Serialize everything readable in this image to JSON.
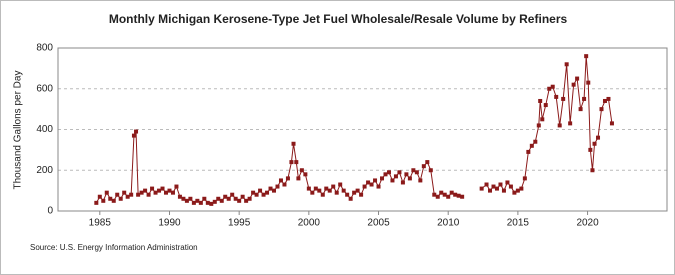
{
  "chart_data": {
    "type": "line",
    "title": "Monthly Michigan Kerosene-Type Jet Fuel Wholesale/Resale Volume by Refiners",
    "y_label": "Thousand Gallons per Day",
    "source": "Source: U.S. Energy Information Administration",
    "x": [
      1984.75,
      1985,
      1985.25,
      1985.5,
      1985.75,
      1986,
      1986.25,
      1986.5,
      1986.75,
      1987,
      1987.25,
      1987.45,
      1987.6,
      1987.75,
      1988,
      1988.25,
      1988.5,
      1988.75,
      1989,
      1989.25,
      1989.5,
      1989.75,
      1990,
      1990.25,
      1990.5,
      1990.75,
      1991,
      1991.25,
      1991.5,
      1991.75,
      1992,
      1992.25,
      1992.5,
      1992.75,
      1993,
      1993.25,
      1993.5,
      1993.75,
      1994,
      1994.25,
      1994.5,
      1994.75,
      1995,
      1995.25,
      1995.5,
      1995.75,
      1996,
      1996.25,
      1996.5,
      1996.75,
      1997,
      1997.25,
      1997.5,
      1997.75,
      1998,
      1998.25,
      1998.5,
      1998.75,
      1998.9,
      1999.1,
      1999.25,
      1999.5,
      1999.75,
      2000,
      2000.25,
      2000.5,
      2000.75,
      2001,
      2001.25,
      2001.5,
      2001.75,
      2002,
      2002.25,
      2002.5,
      2002.75,
      2003,
      2003.25,
      2003.5,
      2003.75,
      2004,
      2004.25,
      2004.5,
      2004.75,
      2005,
      2005.25,
      2005.5,
      2005.75,
      2006,
      2006.25,
      2006.5,
      2006.75,
      2007,
      2007.25,
      2007.5,
      2007.75,
      2008,
      2008.25,
      2008.5,
      2008.75,
      2009,
      2009.25,
      2009.5,
      2009.75,
      2010,
      2010.25,
      2010.5,
      2010.75,
      2011,
      2011.7,
      2012.4,
      2012.75,
      2013,
      2013.25,
      2013.5,
      2013.75,
      2014,
      2014.25,
      2014.5,
      2014.75,
      2015,
      2015.25,
      2015.5,
      2015.75,
      2016,
      2016.25,
      2016.5,
      2016.6,
      2016.75,
      2017,
      2017.25,
      2017.5,
      2017.75,
      2018,
      2018.25,
      2018.5,
      2018.75,
      2019,
      2019.25,
      2019.5,
      2019.75,
      2019.9,
      2020.05,
      2020.2,
      2020.35,
      2020.5,
      2020.75,
      2021,
      2021.25,
      2021.5,
      2021.75
    ],
    "series": [
      {
        "color": "#8b1a1a",
        "values": [
          40,
          70,
          50,
          90,
          60,
          50,
          80,
          60,
          90,
          70,
          80,
          370,
          390,
          80,
          90,
          100,
          80,
          110,
          90,
          100,
          110,
          90,
          100,
          90,
          120,
          70,
          60,
          50,
          60,
          40,
          50,
          40,
          60,
          40,
          35,
          45,
          60,
          50,
          70,
          60,
          80,
          60,
          50,
          70,
          50,
          60,
          90,
          80,
          100,
          80,
          90,
          110,
          100,
          120,
          150,
          130,
          160,
          240,
          330,
          240,
          160,
          200,
          180,
          110,
          90,
          110,
          100,
          80,
          110,
          100,
          120,
          90,
          130,
          100,
          80,
          60,
          90,
          100,
          80,
          120,
          140,
          130,
          150,
          120,
          160,
          180,
          190,
          150,
          170,
          190,
          140,
          180,
          160,
          200,
          190,
          150,
          220,
          240,
          200,
          80,
          70,
          90,
          80,
          70,
          90,
          80,
          75,
          70,
          null,
          110,
          130,
          100,
          120,
          110,
          130,
          100,
          140,
          120,
          90,
          100,
          110,
          160,
          290,
          320,
          340,
          420,
          540,
          450,
          520,
          600,
          610,
          560,
          420,
          550,
          720,
          430,
          620,
          650,
          500,
          550,
          760,
          630,
          300,
          200,
          330,
          360,
          500,
          540,
          550,
          430
        ]
      }
    ],
    "xlim": [
      1982,
      2025.7
    ],
    "ylim": [
      0,
      800
    ],
    "xticks": [
      1985,
      1990,
      1995,
      2000,
      2005,
      2010,
      2015,
      2020
    ],
    "yticks": [
      0,
      200,
      400,
      600,
      800
    ],
    "grid": true
  }
}
